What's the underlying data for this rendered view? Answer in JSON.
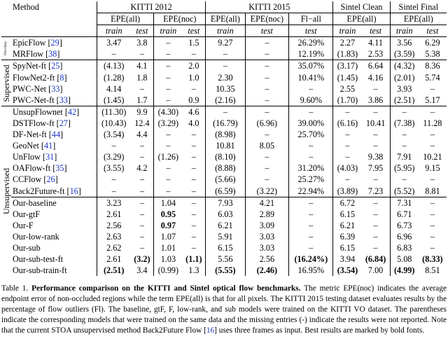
{
  "header": {
    "method": "Method",
    "kitti2012": "KITTI 2012",
    "kitti2015": "KITTI 2015",
    "sintel_clean": "Sintel Clean",
    "sintel_final": "Sintel Final",
    "epe_all": "EPE(all)",
    "epe_noc": "EPE(noc)",
    "fl_all": "Fl−all",
    "train": "train",
    "test": "test"
  },
  "groups": {
    "nondeep": "Non-deep",
    "supervised": "Supervised",
    "unsupervised": "Unsupervised"
  },
  "rows": [
    {
      "name": "EpicFlow",
      "ref": "29",
      "c": [
        "3.47",
        "3.8",
        "–",
        "1.5",
        "9.27",
        "–",
        "26.29%",
        "2.27",
        "4.11",
        "3.56",
        "6.29"
      ]
    },
    {
      "name": "MRFlow",
      "ref": "38",
      "c": [
        "–",
        "–",
        "–",
        "–",
        "–",
        "–",
        "12.19%",
        "(1.83)",
        "2.53",
        "(3.59)",
        "5.38"
      ]
    },
    {
      "name": "SpyNet-ft",
      "ref": "25",
      "c": [
        "(4.13)",
        "4.1",
        "–",
        "2.0",
        "–",
        "–",
        "35.07%",
        "(3.17)",
        "6.64",
        "(4.32)",
        "8.36"
      ]
    },
    {
      "name": "FlowNet2-ft",
      "ref": "8",
      "c": [
        "(1.28)",
        "1.8",
        "–",
        "1.0",
        "2.30",
        "–",
        "10.41%",
        "(1.45)",
        "4.16",
        "(2.01)",
        "5.74"
      ]
    },
    {
      "name": "PWC-Net",
      "ref": "33",
      "c": [
        "4.14",
        "–",
        "–",
        "–",
        "10.35",
        "–",
        "–",
        "2.55",
        "–",
        "3.93",
        "–"
      ]
    },
    {
      "name": "PWC-Net-ft",
      "ref": "33",
      "c": [
        "(1.45)",
        "1.7",
        "–",
        "0.9",
        "(2.16)",
        "–",
        "9.60%",
        "(1.70)",
        "3.86",
        "(2.51)",
        "5.17"
      ]
    },
    {
      "name": "UnsupFlownet",
      "ref": "42",
      "c": [
        "(11.30)",
        "9.9",
        "(4.30)",
        "4.6",
        "–",
        "–",
        "–",
        "–",
        "–",
        "–",
        "–"
      ]
    },
    {
      "name": "DSTFlow-ft",
      "ref": "27",
      "c": [
        "(10.43)",
        "12.4",
        "(3.29)",
        "4.0",
        "(16.79)",
        "(6.96)",
        "39.00%",
        "(6.16)",
        "10.41",
        "(7.38)",
        "11.28"
      ]
    },
    {
      "name": "DF-Net-ft",
      "ref": "44",
      "c": [
        "(3.54)",
        "4.4",
        "–",
        "–",
        "(8.98)",
        "–",
        "25.70%",
        "–",
        "–",
        "–",
        "–"
      ]
    },
    {
      "name": "GeoNet",
      "ref": "41",
      "c": [
        "–",
        "–",
        "–",
        "–",
        "10.81",
        "8.05",
        "–",
        "–",
        "–",
        "–",
        "–"
      ]
    },
    {
      "name": "UnFlow",
      "ref": "31",
      "c": [
        "(3.29)",
        "–",
        "(1.26)",
        "–",
        "(8.10)",
        "–",
        "–",
        "–",
        "9.38",
        "7.91",
        "10.21"
      ]
    },
    {
      "name": "OAFlow-ft",
      "ref": "35",
      "c": [
        "(3.55)",
        "4.2",
        "–",
        "–",
        "(8.88)",
        "–",
        "31.20%",
        "(4.03)",
        "7.95",
        "(5.95)",
        "9.15"
      ]
    },
    {
      "name": "CCFlow",
      "ref": "26",
      "c": [
        "–",
        "–",
        "–",
        "–",
        "(5.66)",
        "–",
        "25.27%",
        "–",
        "–",
        "–",
        "–"
      ]
    },
    {
      "name": "Back2Future-ft",
      "ref": "16",
      "c": [
        "–",
        "–",
        "–",
        "–",
        "(6.59)",
        "(3.22)",
        "22.94%",
        "(3.89)",
        "7.23",
        "(5.52)",
        "8.81"
      ]
    },
    {
      "name": "Our-baseline",
      "ref": "",
      "c": [
        "3.23",
        "–",
        "1.04",
        "–",
        "7.93",
        "4.21",
        "–",
        "6.72",
        "–",
        "7.31",
        "–"
      ]
    },
    {
      "name": "Our-gtF",
      "ref": "",
      "c": [
        "2.61",
        "–",
        "0.95",
        "–",
        "6.03",
        "2.89",
        "–",
        "6.15",
        "–",
        "6.71",
        "–"
      ]
    },
    {
      "name": "Our-F",
      "ref": "",
      "c": [
        "2.56",
        "–",
        "0.97",
        "–",
        "6.21",
        "3.09",
        "–",
        "6.21",
        "–",
        "6.73",
        "–"
      ]
    },
    {
      "name": "Our-low-rank",
      "ref": "",
      "c": [
        "2.63",
        "–",
        "1.07",
        "–",
        "5.91",
        "3.03",
        "–",
        "6.39",
        "–",
        "6.96",
        "–"
      ]
    },
    {
      "name": "Our-sub",
      "ref": "",
      "c": [
        "2.62",
        "–",
        "1.01",
        "–",
        "6.15",
        "3.03",
        "–",
        "6.15",
        "–",
        "6.83",
        "–"
      ]
    },
    {
      "name": "Our-sub-test-ft",
      "ref": "",
      "c": [
        "2.61",
        "(3.2)",
        "1.03",
        "(1.1)",
        "5.56",
        "2.56",
        "(16.24%)",
        "3.94",
        "(6.84)",
        "5.08",
        "(8.33)"
      ]
    },
    {
      "name": "Our-sub-train-ft",
      "ref": "",
      "c": [
        "(2.51)",
        "3.4",
        "(0.99)",
        "1.3",
        "(5.55)",
        "(2.46)",
        "16.95%",
        "(3.54)",
        "7.00",
        "(4.99)",
        "8.51"
      ]
    }
  ],
  "caption": {
    "label": "Table 1.",
    "title": "Performance comparison on the KITTI and Sintel optical flow benchmarks.",
    "t1": "The metric EPE(noc) indicates the average endpoint error of non-occluded regions while the term EPE(all) is that for all pixels. The KITTI 2015 testing dataset evaluates results by the percentage of flow outliers (Fl). The baseline, gtF, F, low-rank, and sub models were trained on the KITTI VO dataset. The parentheses indicate the corresponding models that were trained on the same data and the missing entries (-) indicate the results were not reported. Note that the current STOA unsupervised method Back2Future Flow [",
    "ref": "16",
    "t2": "] uses three frames as input. Best results are marked by bold fonts."
  }
}
